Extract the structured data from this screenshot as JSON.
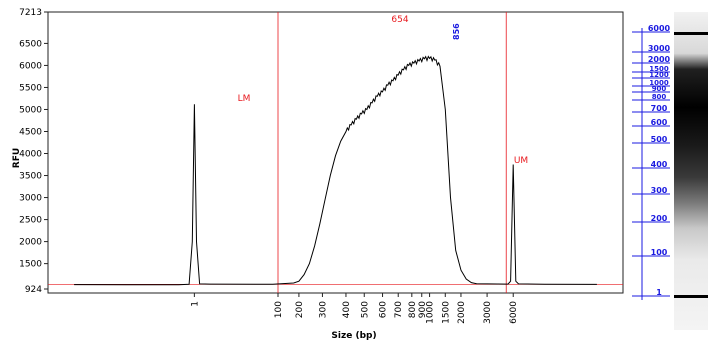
{
  "chart_data": {
    "type": "line",
    "xlabel": "Size (bp)",
    "ylabel": "RFU",
    "ylim": [
      924,
      7213
    ],
    "y_ticks": [
      "7213",
      "6500",
      "6000",
      "5500",
      "5000",
      "4500",
      "4000",
      "3500",
      "3000",
      "2500",
      "2000",
      "1500",
      "924"
    ],
    "x_ticks": [
      "1",
      "100",
      "200",
      "300",
      "400",
      "500",
      "600",
      "700",
      "800",
      "900",
      "1000",
      "1500",
      "2000",
      "3000",
      "6000"
    ],
    "x_tick_time_s": [
      43,
      59,
      63,
      67.5,
      72,
      75.5,
      79,
      82,
      84.6,
      86.5,
      88,
      91,
      94,
      99,
      104
    ],
    "markers": [
      {
        "label": "LM",
        "x": "1",
        "color": "#e8191e"
      },
      {
        "label": "UM",
        "x": "6000",
        "color": "#e8191e"
      }
    ],
    "region": {
      "from": "100",
      "to": "6000",
      "label": "654",
      "color": "#e8191e"
    },
    "peak_label": "856",
    "peak_label_color": "#1a1ae0",
    "trace_color": "#000000",
    "series": [
      {
        "points": [
          [
            20,
            1025
          ],
          [
            30,
            1020
          ],
          [
            40,
            1022
          ],
          [
            42,
            1030
          ],
          [
            42.6,
            2000
          ],
          [
            43,
            5120
          ],
          [
            43.4,
            2000
          ],
          [
            44,
            1040
          ],
          [
            46,
            1035
          ],
          [
            58,
            1030
          ],
          [
            62,
            1060
          ],
          [
            63,
            1100
          ],
          [
            64,
            1250
          ],
          [
            65,
            1500
          ],
          [
            66,
            1900
          ],
          [
            67,
            2400
          ],
          [
            68,
            2950
          ],
          [
            69,
            3500
          ],
          [
            70,
            3950
          ],
          [
            71,
            4280
          ],
          [
            72,
            4500
          ],
          [
            73,
            4650
          ],
          [
            74,
            4780
          ],
          [
            75,
            4900
          ],
          [
            76,
            5000
          ],
          [
            77,
            5150
          ],
          [
            78,
            5300
          ],
          [
            79,
            5400
          ],
          [
            80,
            5550
          ],
          [
            81,
            5650
          ],
          [
            82,
            5780
          ],
          [
            83,
            5900
          ],
          [
            84,
            6000
          ],
          [
            85,
            6050
          ],
          [
            86,
            6100
          ],
          [
            87,
            6150
          ],
          [
            88,
            6160
          ],
          [
            89,
            6120
          ],
          [
            90,
            5980
          ],
          [
            91,
            5000
          ],
          [
            92,
            3000
          ],
          [
            93,
            1800
          ],
          [
            94,
            1350
          ],
          [
            95,
            1150
          ],
          [
            96,
            1070
          ],
          [
            97,
            1045
          ],
          [
            99,
            1040
          ],
          [
            103,
            1035
          ],
          [
            103.5,
            1100
          ],
          [
            104,
            3750
          ],
          [
            104.5,
            1100
          ],
          [
            105,
            1040
          ],
          [
            110,
            1030
          ],
          [
            120,
            1028
          ]
        ]
      }
    ],
    "right_axis": {
      "color": "#1a1ae0",
      "labels": [
        "6000",
        "3000",
        "2000",
        "1500",
        "1200",
        "1000",
        "900",
        "800",
        "700",
        "600",
        "500",
        "400",
        "300",
        "200",
        "100",
        "1"
      ]
    }
  }
}
